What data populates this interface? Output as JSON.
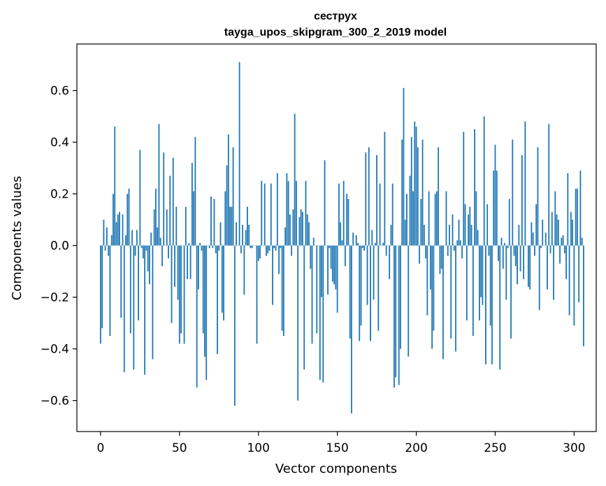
{
  "chart_data": {
    "type": "bar",
    "title": "сеструх",
    "subtitle": "tayga_upos_skipgram_300_2_2019 model",
    "xlabel": "Vector components",
    "ylabel": "Components values",
    "xlim": [
      -15,
      314
    ],
    "ylim": [
      -0.72,
      0.78
    ],
    "xticks": [
      0,
      50,
      100,
      150,
      200,
      250,
      300
    ],
    "yticks": [
      -0.6,
      -0.4,
      -0.2,
      0.0,
      0.2,
      0.4,
      0.6
    ],
    "ytick_labels": [
      "−0.6",
      "−0.4",
      "−0.2",
      "0.0",
      "0.2",
      "0.4",
      "0.6"
    ],
    "grid": false,
    "bar_color": "#1f77b4",
    "series": [
      {
        "values": [
          -0.38,
          -0.32,
          0.1,
          -0.02,
          0.07,
          -0.04,
          -0.35,
          0.04,
          0.2,
          0.46,
          0.09,
          0.12,
          0.13,
          -0.28,
          0.12,
          -0.49,
          0.04,
          0.2,
          0.22,
          -0.34,
          0.06,
          -0.48,
          -0.04,
          0.06,
          -0.29,
          0.37,
          -0.01,
          -0.05,
          -0.5,
          -0.02,
          -0.1,
          -0.15,
          0.05,
          -0.44,
          0.14,
          0.22,
          0.07,
          0.47,
          0.03,
          -0.08,
          0.36,
          0.0,
          0.14,
          -0.05,
          0.27,
          -0.3,
          0.34,
          -0.16,
          0.15,
          -0.21,
          -0.38,
          -0.34,
          0.0,
          -0.38,
          0.15,
          -0.13,
          0.01,
          -0.13,
          0.32,
          0.21,
          0.42,
          -0.55,
          -0.17,
          0.01,
          -0.02,
          -0.34,
          -0.43,
          -0.52,
          0.0,
          -0.01,
          0.19,
          -0.01,
          0.18,
          -0.03,
          -0.42,
          -0.02,
          0.09,
          -0.26,
          -0.29,
          0.21,
          0.31,
          0.43,
          0.15,
          0.15,
          0.38,
          -0.62,
          0.09,
          0.0,
          0.71,
          -0.03,
          0.08,
          -0.19,
          0.06,
          0.15,
          0.08,
          -0.01,
          -0.01,
          0.0,
          0.0,
          -0.38,
          -0.06,
          -0.05,
          0.25,
          0.0,
          0.24,
          -0.04,
          -0.03,
          -0.02,
          0.24,
          -0.23,
          -0.01,
          -0.02,
          0.28,
          -0.11,
          -0.01,
          -0.33,
          -0.35,
          0.07,
          0.28,
          0.25,
          0.12,
          -0.04,
          0.14,
          0.51,
          0.25,
          -0.6,
          0.11,
          0.14,
          0.13,
          -0.48,
          0.25,
          0.12,
          0.09,
          -0.09,
          -0.38,
          0.03,
          0.0,
          -0.34,
          0.0,
          -0.52,
          -0.2,
          -0.53,
          0.33,
          0.0,
          -0.19,
          -0.01,
          -0.09,
          -0.14,
          -0.15,
          -0.17,
          -0.26,
          0.24,
          0.09,
          0.02,
          0.25,
          -0.08,
          0.2,
          0.18,
          -0.36,
          -0.65,
          0.05,
          0.0,
          0.04,
          0.01,
          -0.37,
          -0.31,
          -0.01,
          -0.02,
          0.36,
          -0.23,
          0.38,
          -0.37,
          0.06,
          -0.21,
          0.01,
          0.35,
          -0.33,
          0.24,
          0.0,
          0.01,
          0.44,
          -0.04,
          0.0,
          -0.13,
          0.08,
          0.24,
          -0.55,
          -0.51,
          0.0,
          -0.54,
          -0.4,
          0.41,
          0.61,
          0.1,
          0.2,
          -0.43,
          0.27,
          0.42,
          0.21,
          0.48,
          0.46,
          0.38,
          -0.07,
          0.18,
          0.41,
          0.08,
          -0.05,
          -0.27,
          0.21,
          -0.17,
          -0.4,
          -0.33,
          0.2,
          0.21,
          0.38,
          -0.11,
          -0.09,
          -0.44,
          0.0,
          0.21,
          -0.04,
          0.08,
          -0.36,
          0.12,
          -0.02,
          -0.41,
          0.02,
          0.1,
          0.02,
          -0.05,
          0.44,
          0.16,
          -0.29,
          0.12,
          0.15,
          0.08,
          -0.35,
          0.45,
          0.21,
          0.06,
          -0.29,
          -0.2,
          -0.23,
          0.5,
          -0.46,
          0.16,
          -0.04,
          -0.31,
          -0.46,
          0.29,
          0.39,
          0.29,
          -0.06,
          -0.48,
          0.03,
          -0.09,
          0.01,
          -0.21,
          -0.01,
          0.18,
          -0.36,
          0.41,
          -0.04,
          -0.08,
          -0.15,
          0.08,
          -0.1,
          0.35,
          -0.13,
          0.48,
          0.0,
          -0.16,
          -0.17,
          0.09,
          0.05,
          -0.04,
          0.16,
          0.38,
          -0.25,
          -0.01,
          0.1,
          0.0,
          0.05,
          -0.17,
          0.47,
          -0.03,
          0.13,
          -0.21,
          0.21,
          0.12,
          0.1,
          -0.07,
          0.03,
          0.04,
          -0.03,
          -0.13,
          0.28,
          -0.27,
          0.13,
          0.1,
          -0.31,
          0.22,
          0.22,
          -0.22,
          0.29,
          0.03,
          -0.39
        ]
      }
    ]
  }
}
